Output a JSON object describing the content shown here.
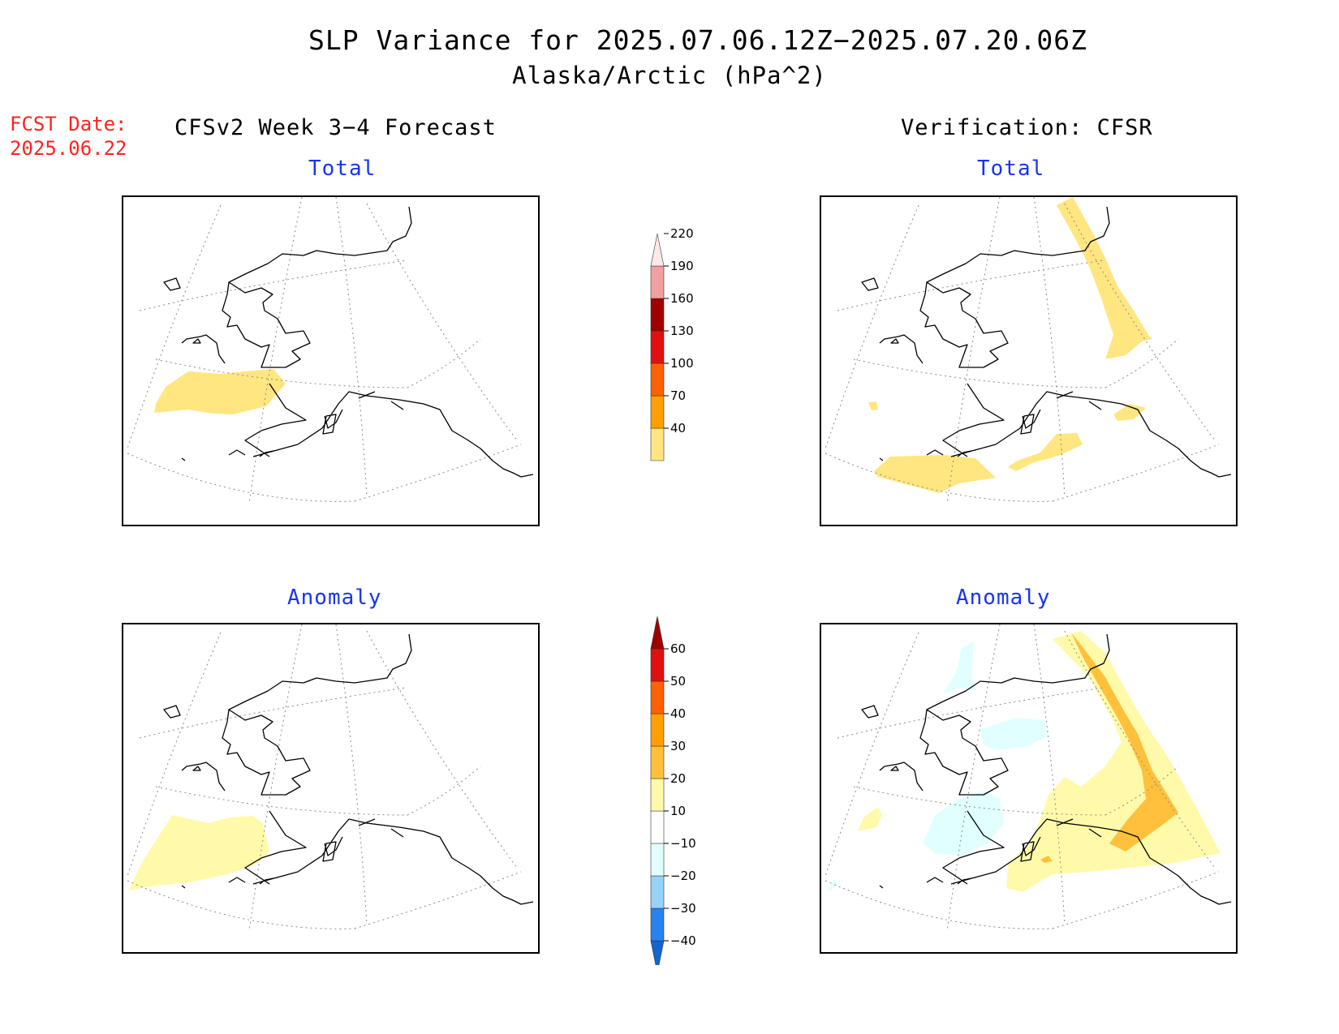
{
  "title": "SLP Variance for 2025.07.06.12Z−2025.07.20.06Z",
  "subtitle": "Alaska/Arctic (hPa^2)",
  "forecast_date": {
    "label": "FCST Date:",
    "value": "2025.06.22"
  },
  "columns": {
    "left": "CFSv2 Week 3−4 Forecast",
    "right": "Verification: CFSR"
  },
  "panels": {
    "forecast_total": {
      "title": "Total"
    },
    "verification_total": {
      "title": "Total"
    },
    "forecast_anomaly": {
      "title": "Anomaly"
    },
    "verification_anomaly": {
      "title": "Anomaly"
    }
  },
  "colorbars": {
    "total": {
      "ticks": [
        "40",
        "70",
        "100",
        "130",
        "160",
        "190",
        "220"
      ],
      "colors": [
        "#ffe680",
        "#ffa000",
        "#ff6000",
        "#e01010",
        "#a00000",
        "#f0a0a0",
        "#ffe8e8"
      ]
    },
    "anomaly": {
      "ticks": [
        "−40",
        "−30",
        "−20",
        "−10",
        "10",
        "20",
        "30",
        "40",
        "50",
        "60"
      ],
      "colors": [
        "#1464d2",
        "#2882f0",
        "#96d2fa",
        "#e1ffff",
        "#ffffff",
        "#fffaaa",
        "#ffc03c",
        "#ffa000",
        "#ff6000",
        "#e01010",
        "#a00000"
      ]
    }
  }
}
